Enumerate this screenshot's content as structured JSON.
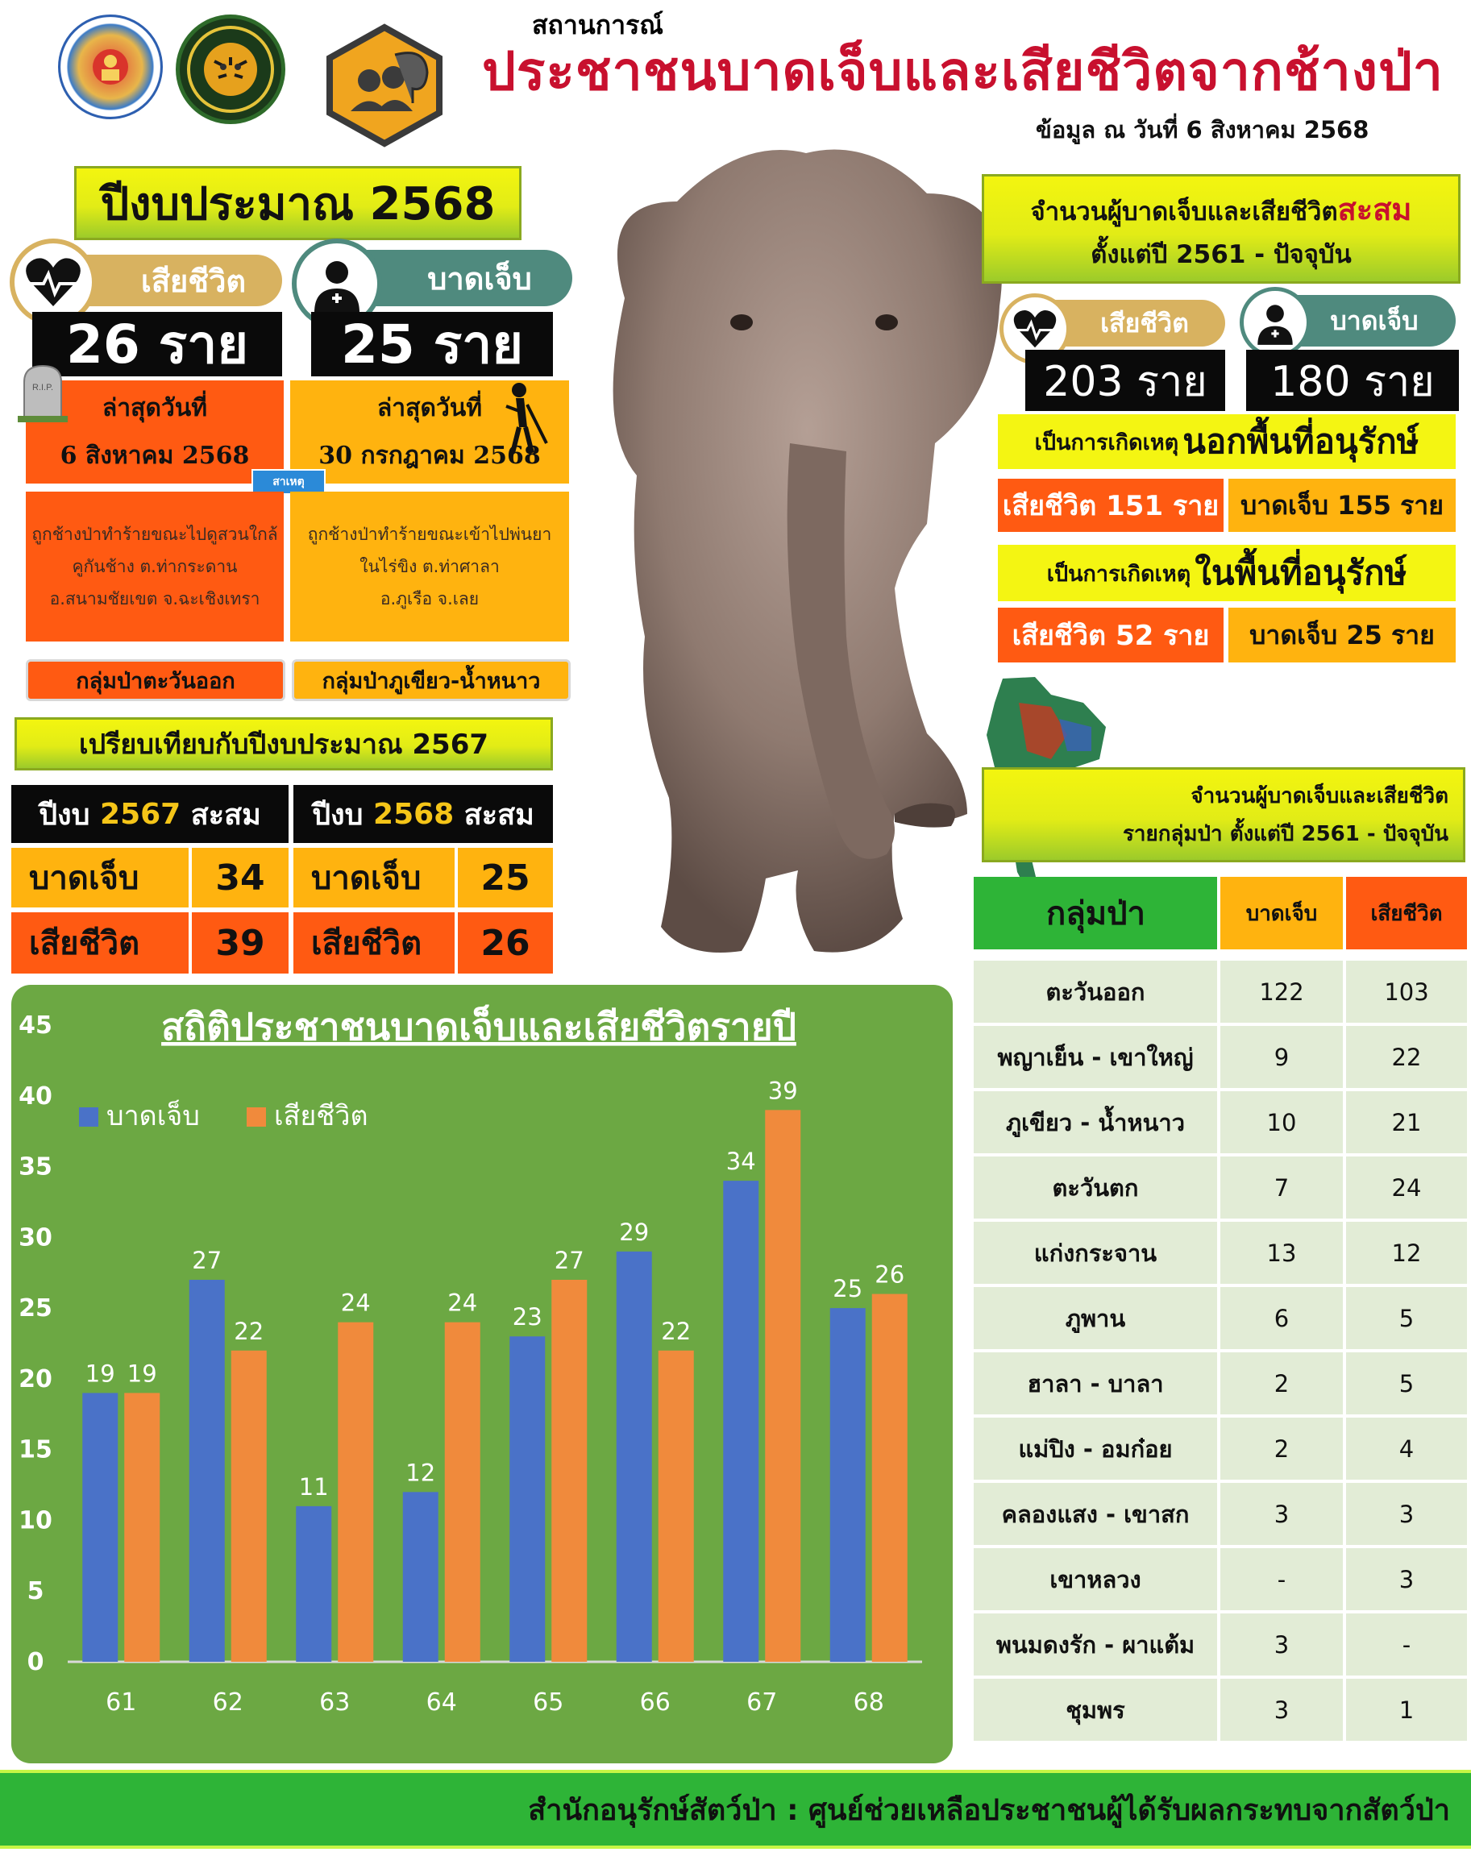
{
  "header": {
    "subtitle": "สถานการณ์",
    "title": "ประชาชนบาดเจ็บและเสียชีวิตจากช้างป่า",
    "data_date": "ข้อมูล ณ วันที่ 6 สิงหาคม 2568"
  },
  "fiscal": {
    "heading": "ปีงบประมาณ 2568",
    "death_label": "เสียชีวิต",
    "injury_label": "บาดเจ็บ",
    "death_count": "26 ราย",
    "injury_count": "25 ราย",
    "death_latest_label": "ล่าสุดวันที่",
    "death_latest_date": "6 สิงหาคม 2568",
    "injury_latest_label": "ล่าสุดวันที่",
    "injury_latest_date": "30 กรกฎาคม 2568",
    "cause_tag": "สาเหตุ",
    "death_cause": [
      "ถูกช้างป่าทำร้ายขณะไปดูสวนใกล้",
      "คูกันช้าง ต.ท่ากระดาน",
      "อ.สนามชัยเขต จ.ฉะเชิงเทรา"
    ],
    "injury_cause": [
      "ถูกช้างป่าทำร้ายขณะเข้าไปพ่นยา",
      "ในไร่ขิง ต.ท่าศาลา",
      "อ.ภูเรือ จ.เลย"
    ],
    "death_group": "กลุ่มป่าตะวันออก",
    "injury_group": "กลุ่มป่าภูเขียว-น้ำหนาว",
    "rip": "R.I.P."
  },
  "comparison": {
    "heading": "เปรียบเทียบกับปีงบประมาณ 2567",
    "col1_pre": "ปีงบ",
    "col1_year": "2567",
    "col1_post": "สะสม",
    "col2_pre": "ปีงบ",
    "col2_year": "2568",
    "col2_post": "สะสม",
    "injury_label": "บาดเจ็บ",
    "death_label": "เสียชีวิต",
    "injury_2567": "34",
    "death_2567": "39",
    "injury_2568": "25",
    "death_2568": "26"
  },
  "cumulative": {
    "heading_part1": "จำนวนผู้บาดเจ็บและเสียชีวิต",
    "heading_highlight": "สะสม",
    "heading_line2": "ตั้งแต่ปี 2561 - ปัจจุบัน",
    "death_label": "เสียชีวิต",
    "injury_label": "บาดเจ็บ",
    "death_total": "203 ราย",
    "injury_total": "180 ราย",
    "outside_prefix": "เป็นการเกิดเหตุ",
    "outside_big": "นอกพื้นที่อนุรักษ์",
    "outside_death": "เสียชีวิต 151 ราย",
    "outside_injury": "บาดเจ็บ 155 ราย",
    "inside_prefix": "เป็นการเกิดเหตุ",
    "inside_big": "ในพื้นที่อนุรักษ์",
    "inside_death": "เสียชีวิต 52 ราย",
    "inside_injury": "บาดเจ็บ 25 ราย"
  },
  "forest_table": {
    "heading_line1": "จำนวนผู้บาดเจ็บและเสียชีวิต",
    "heading_line2": "รายกลุ่มป่า ตั้งแต่ปี 2561 - ปัจจุบัน",
    "headers": [
      "กลุ่มป่า",
      "บาดเจ็บ",
      "เสียชีวิต"
    ],
    "rows": [
      [
        "ตะวันออก",
        "122",
        "103"
      ],
      [
        "พญาเย็น - เขาใหญ่",
        "9",
        "22"
      ],
      [
        "ภูเขียว - น้ำหนาว",
        "10",
        "21"
      ],
      [
        "ตะวันตก",
        "7",
        "24"
      ],
      [
        "แก่งกระจาน",
        "13",
        "12"
      ],
      [
        "ภูพาน",
        "6",
        "5"
      ],
      [
        "ฮาลา - บาลา",
        "2",
        "5"
      ],
      [
        "แม่ปิง - อมก๋อย",
        "2",
        "4"
      ],
      [
        "คลองแสง - เขาสก",
        "3",
        "3"
      ],
      [
        "เขาหลวง",
        "-",
        "3"
      ],
      [
        "พนมดงรัก - ผาแต้ม",
        "3",
        "-"
      ],
      [
        "ชุมพร",
        "3",
        "1"
      ]
    ]
  },
  "chart_data": {
    "type": "bar",
    "title": "สถิติประชาชนบาดเจ็บและเสียชีวิตรายปี",
    "categories": [
      "61",
      "62",
      "63",
      "64",
      "65",
      "66",
      "67",
      "68"
    ],
    "series": [
      {
        "name": "บาดเจ็บ",
        "color": "#4a72c8",
        "values": [
          19,
          27,
          11,
          12,
          23,
          29,
          34,
          25
        ]
      },
      {
        "name": "เสียชีวิต",
        "color": "#f08a3c",
        "values": [
          19,
          22,
          24,
          24,
          27,
          22,
          39,
          26
        ]
      }
    ],
    "yticks": [
      "0",
      "5",
      "10",
      "15",
      "20",
      "25",
      "30",
      "35",
      "40",
      "45"
    ],
    "ylim": [
      0,
      45
    ],
    "legend": "top-left",
    "grid": false
  },
  "footer": {
    "text": "สำนักอนุรักษ์สัตว์ป่า : ศูนย์ช่วยเหลือประชาชนผู้ได้รับผลกระทบจากสัตว์ป่า"
  },
  "colors": {
    "title_red": "#c8102e",
    "orange": "#ff5a12",
    "amber": "#ffb30f",
    "green": "#2eb437",
    "chart_green": "#6ca843",
    "teal": "#4f8a7e",
    "gold": "#d8b260"
  },
  "icons": [
    "department-logo",
    "wildlife-conservation-logo",
    "elephant-community-logo",
    "heart-pulse-icon",
    "doctor-icon",
    "gravestone-icon",
    "injured-person-icon",
    "thailand-map",
    "elephant-photo"
  ]
}
